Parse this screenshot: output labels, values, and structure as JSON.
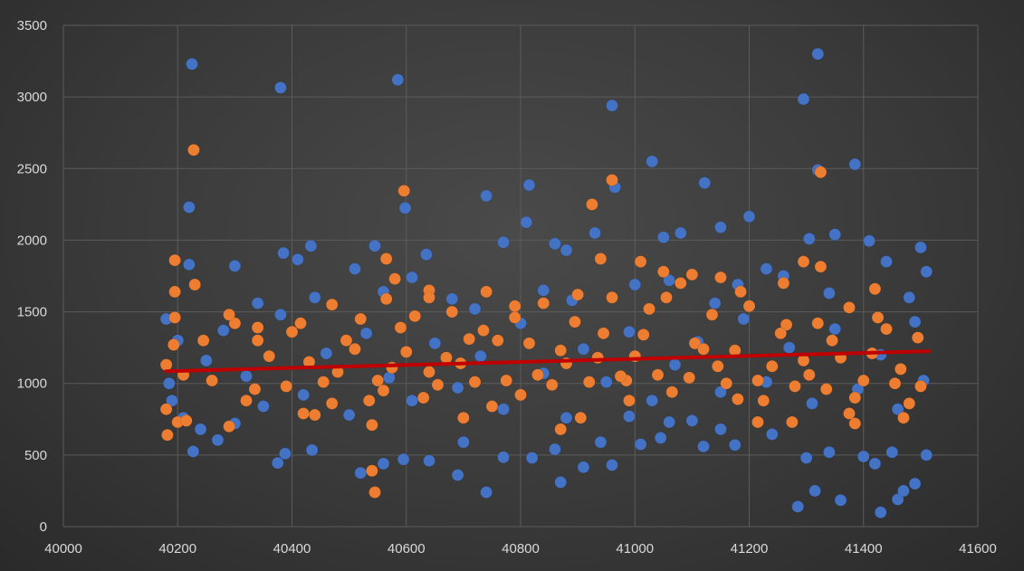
{
  "chart_data": {
    "type": "scatter",
    "title": "",
    "xlabel": "",
    "ylabel": "",
    "xlim": [
      40000,
      41600
    ],
    "ylim": [
      0,
      3500
    ],
    "x_ticks": [
      40000,
      40200,
      40400,
      40600,
      40800,
      41000,
      41200,
      41400,
      41600
    ],
    "y_ticks": [
      0,
      500,
      1000,
      1500,
      2000,
      2500,
      3000,
      3500
    ],
    "x_tick_labels": [
      "40000",
      "40200",
      "40400",
      "40600",
      "40800",
      "41000",
      "41200",
      "41400",
      "41600"
    ],
    "y_tick_labels": [
      "0",
      "500",
      "1000",
      "1500",
      "2000",
      "2500",
      "3000",
      "3500"
    ],
    "grid": true,
    "legend": "none",
    "series": [
      {
        "color": "#4472c4",
        "points": [
          [
            40225,
            3230
          ],
          [
            40380,
            3065
          ],
          [
            40585,
            3120
          ],
          [
            40960,
            2940
          ],
          [
            41320,
            3300
          ],
          [
            41295,
            2985
          ],
          [
            40220,
            2230
          ],
          [
            40598,
            2225
          ],
          [
            40740,
            2310
          ],
          [
            40815,
            2385
          ],
          [
            41030,
            2550
          ],
          [
            41122,
            2400
          ],
          [
            41385,
            2530
          ],
          [
            41320,
            2490
          ],
          [
            40965,
            2370
          ],
          [
            41200,
            2165
          ],
          [
            40810,
            2125
          ],
          [
            40770,
            1985
          ],
          [
            40930,
            2050
          ],
          [
            41050,
            2020
          ],
          [
            41080,
            2050
          ],
          [
            41305,
            2010
          ],
          [
            41350,
            2040
          ],
          [
            40433,
            1960
          ],
          [
            40385,
            1910
          ],
          [
            40410,
            1865
          ],
          [
            40545,
            1960
          ],
          [
            40635,
            1900
          ],
          [
            40860,
            1975
          ],
          [
            40880,
            1930
          ],
          [
            40510,
            1800
          ],
          [
            40610,
            1740
          ],
          [
            41150,
            2090
          ],
          [
            41410,
            1995
          ],
          [
            41440,
            1850
          ],
          [
            41500,
            1950
          ],
          [
            41510,
            1780
          ],
          [
            41230,
            1800
          ],
          [
            40300,
            1820
          ],
          [
            40220,
            1830
          ],
          [
            40520,
            375
          ],
          [
            40560,
            440
          ],
          [
            40690,
            360
          ],
          [
            40740,
            240
          ],
          [
            40870,
            310
          ],
          [
            40910,
            415
          ],
          [
            40960,
            430
          ],
          [
            41010,
            575
          ],
          [
            41045,
            620
          ],
          [
            41120,
            560
          ],
          [
            41175,
            570
          ],
          [
            41285,
            140
          ],
          [
            41315,
            250
          ],
          [
            41360,
            185
          ],
          [
            41430,
            100
          ],
          [
            41460,
            190
          ],
          [
            41470,
            250
          ],
          [
            41490,
            300
          ],
          [
            40227,
            525
          ],
          [
            40270,
            605
          ],
          [
            40375,
            445
          ],
          [
            40388,
            510
          ],
          [
            40435,
            535
          ],
          [
            40595,
            470
          ],
          [
            40640,
            460
          ],
          [
            40700,
            590
          ],
          [
            40770,
            485
          ],
          [
            40820,
            480
          ],
          [
            40860,
            540
          ],
          [
            40940,
            590
          ],
          [
            40990,
            770
          ],
          [
            41060,
            730
          ],
          [
            41100,
            740
          ],
          [
            41150,
            680
          ],
          [
            41240,
            645
          ],
          [
            41300,
            480
          ],
          [
            41340,
            520
          ],
          [
            41400,
            490
          ],
          [
            41420,
            440
          ],
          [
            41450,
            520
          ],
          [
            41510,
            500
          ],
          [
            40180,
            1450
          ],
          [
            40185,
            1000
          ],
          [
            40190,
            880
          ],
          [
            40200,
            1300
          ],
          [
            40210,
            760
          ],
          [
            40250,
            1160
          ],
          [
            40280,
            1370
          ],
          [
            40320,
            1050
          ],
          [
            40350,
            840
          ],
          [
            40380,
            1480
          ],
          [
            40420,
            920
          ],
          [
            40460,
            1210
          ],
          [
            40500,
            780
          ],
          [
            40530,
            1350
          ],
          [
            40570,
            1040
          ],
          [
            40610,
            880
          ],
          [
            40650,
            1280
          ],
          [
            40690,
            970
          ],
          [
            40730,
            1190
          ],
          [
            40770,
            820
          ],
          [
            40800,
            1420
          ],
          [
            40840,
            1070
          ],
          [
            40880,
            760
          ],
          [
            40910,
            1240
          ],
          [
            40950,
            1010
          ],
          [
            40990,
            1360
          ],
          [
            41030,
            880
          ],
          [
            41070,
            1130
          ],
          [
            41110,
            1290
          ],
          [
            41150,
            940
          ],
          [
            41190,
            1450
          ],
          [
            41230,
            1010
          ],
          [
            41270,
            1250
          ],
          [
            41310,
            860
          ],
          [
            41350,
            1380
          ],
          [
            41390,
            960
          ],
          [
            41430,
            1200
          ],
          [
            41460,
            820
          ],
          [
            41490,
            1430
          ],
          [
            41505,
            1020
          ],
          [
            40240,
            680
          ],
          [
            40300,
            720
          ],
          [
            40340,
            1560
          ],
          [
            40440,
            1600
          ],
          [
            40560,
            1640
          ],
          [
            40680,
            1590
          ],
          [
            40720,
            1520
          ],
          [
            40840,
            1650
          ],
          [
            40890,
            1580
          ],
          [
            41000,
            1690
          ],
          [
            41060,
            1720
          ],
          [
            41140,
            1560
          ],
          [
            41180,
            1690
          ],
          [
            41260,
            1750
          ],
          [
            41340,
            1630
          ],
          [
            41480,
            1600
          ]
        ]
      },
      {
        "color": "#ed7d31",
        "points": [
          [
            40228,
            2630
          ],
          [
            40596,
            2345
          ],
          [
            40960,
            2420
          ],
          [
            40925,
            2250
          ],
          [
            41325,
            2475
          ],
          [
            40195,
            1860
          ],
          [
            40565,
            1870
          ],
          [
            40940,
            1870
          ],
          [
            41295,
            1850
          ],
          [
            41325,
            1815
          ],
          [
            40230,
            1690
          ],
          [
            40195,
            1640
          ],
          [
            40580,
            1730
          ],
          [
            40193,
            1270
          ],
          [
            40180,
            1130
          ],
          [
            40182,
            640
          ],
          [
            40200,
            730
          ],
          [
            40540,
            390
          ],
          [
            40545,
            240
          ],
          [
            40565,
            1590
          ],
          [
            40640,
            1650
          ],
          [
            40740,
            1640
          ],
          [
            41010,
            1850
          ],
          [
            41050,
            1780
          ],
          [
            40180,
            820
          ],
          [
            40215,
            740
          ],
          [
            40300,
            1420
          ],
          [
            40340,
            1300
          ],
          [
            40390,
            980
          ],
          [
            40430,
            1150
          ],
          [
            40470,
            860
          ],
          [
            40510,
            1240
          ],
          [
            40550,
            1020
          ],
          [
            40590,
            1390
          ],
          [
            40630,
            900
          ],
          [
            40670,
            1180
          ],
          [
            40710,
            1310
          ],
          [
            40750,
            840
          ],
          [
            40790,
            1460
          ],
          [
            40830,
            1060
          ],
          [
            40870,
            1230
          ],
          [
            40905,
            760
          ],
          [
            40945,
            1350
          ],
          [
            40985,
            1020
          ],
          [
            41025,
            1520
          ],
          [
            41065,
            940
          ],
          [
            41105,
            1280
          ],
          [
            41145,
            1120
          ],
          [
            41185,
            1640
          ],
          [
            41225,
            880
          ],
          [
            41265,
            1410
          ],
          [
            41305,
            1060
          ],
          [
            41345,
            1300
          ],
          [
            41385,
            900
          ],
          [
            41425,
            1460
          ],
          [
            41465,
            1100
          ],
          [
            41500,
            980
          ],
          [
            40260,
            1020
          ],
          [
            40320,
            880
          ],
          [
            40360,
            1190
          ],
          [
            40400,
            1360
          ],
          [
            40440,
            780
          ],
          [
            40480,
            1080
          ],
          [
            40520,
            1450
          ],
          [
            40560,
            950
          ],
          [
            40600,
            1220
          ],
          [
            40640,
            1080
          ],
          [
            40680,
            1500
          ],
          [
            40720,
            1010
          ],
          [
            40760,
            1300
          ],
          [
            40800,
            920
          ],
          [
            40840,
            1560
          ],
          [
            40880,
            1140
          ],
          [
            40920,
            1010
          ],
          [
            40960,
            1600
          ],
          [
            41000,
            1190
          ],
          [
            41040,
            1060
          ],
          [
            41080,
            1700
          ],
          [
            41120,
            1240
          ],
          [
            41160,
            1000
          ],
          [
            41200,
            1540
          ],
          [
            41240,
            1120
          ],
          [
            41280,
            980
          ],
          [
            41320,
            1420
          ],
          [
            41360,
            1180
          ],
          [
            41400,
            1020
          ],
          [
            41440,
            1380
          ],
          [
            41480,
            860
          ],
          [
            40210,
            1060
          ],
          [
            40245,
            1300
          ],
          [
            40290,
            1480
          ],
          [
            40335,
            960
          ],
          [
            40415,
            1420
          ],
          [
            40455,
            1010
          ],
          [
            40495,
            1300
          ],
          [
            40535,
            880
          ],
          [
            40575,
            1110
          ],
          [
            40615,
            1470
          ],
          [
            40655,
            990
          ],
          [
            40695,
            1140
          ],
          [
            40735,
            1370
          ],
          [
            40775,
            1020
          ],
          [
            40815,
            1280
          ],
          [
            40855,
            990
          ],
          [
            40895,
            1430
          ],
          [
            40935,
            1180
          ],
          [
            40975,
            1050
          ],
          [
            41015,
            1340
          ],
          [
            41055,
            1600
          ],
          [
            41095,
            1040
          ],
          [
            41135,
            1480
          ],
          [
            41175,
            1230
          ],
          [
            41215,
            1020
          ],
          [
            41255,
            1350
          ],
          [
            41295,
            1160
          ],
          [
            41335,
            960
          ],
          [
            41375,
            1530
          ],
          [
            41415,
            1210
          ],
          [
            41455,
            1000
          ],
          [
            41495,
            1320
          ],
          [
            40290,
            700
          ],
          [
            40420,
            790
          ],
          [
            40540,
            710
          ],
          [
            40700,
            760
          ],
          [
            40870,
            680
          ],
          [
            40990,
            880
          ],
          [
            41180,
            890
          ],
          [
            41215,
            730
          ],
          [
            41275,
            730
          ],
          [
            41375,
            790
          ],
          [
            41470,
            760
          ],
          [
            41385,
            720
          ],
          [
            40195,
            1460
          ],
          [
            40340,
            1390
          ],
          [
            40470,
            1550
          ],
          [
            40640,
            1600
          ],
          [
            40790,
            1540
          ],
          [
            40900,
            1620
          ],
          [
            41100,
            1760
          ],
          [
            41150,
            1740
          ],
          [
            41260,
            1700
          ],
          [
            41420,
            1660
          ]
        ]
      }
    ],
    "trendline": {
      "color": "#c00000",
      "x": [
        40180,
        41515
      ],
      "y": [
        1085,
        1225
      ]
    }
  }
}
